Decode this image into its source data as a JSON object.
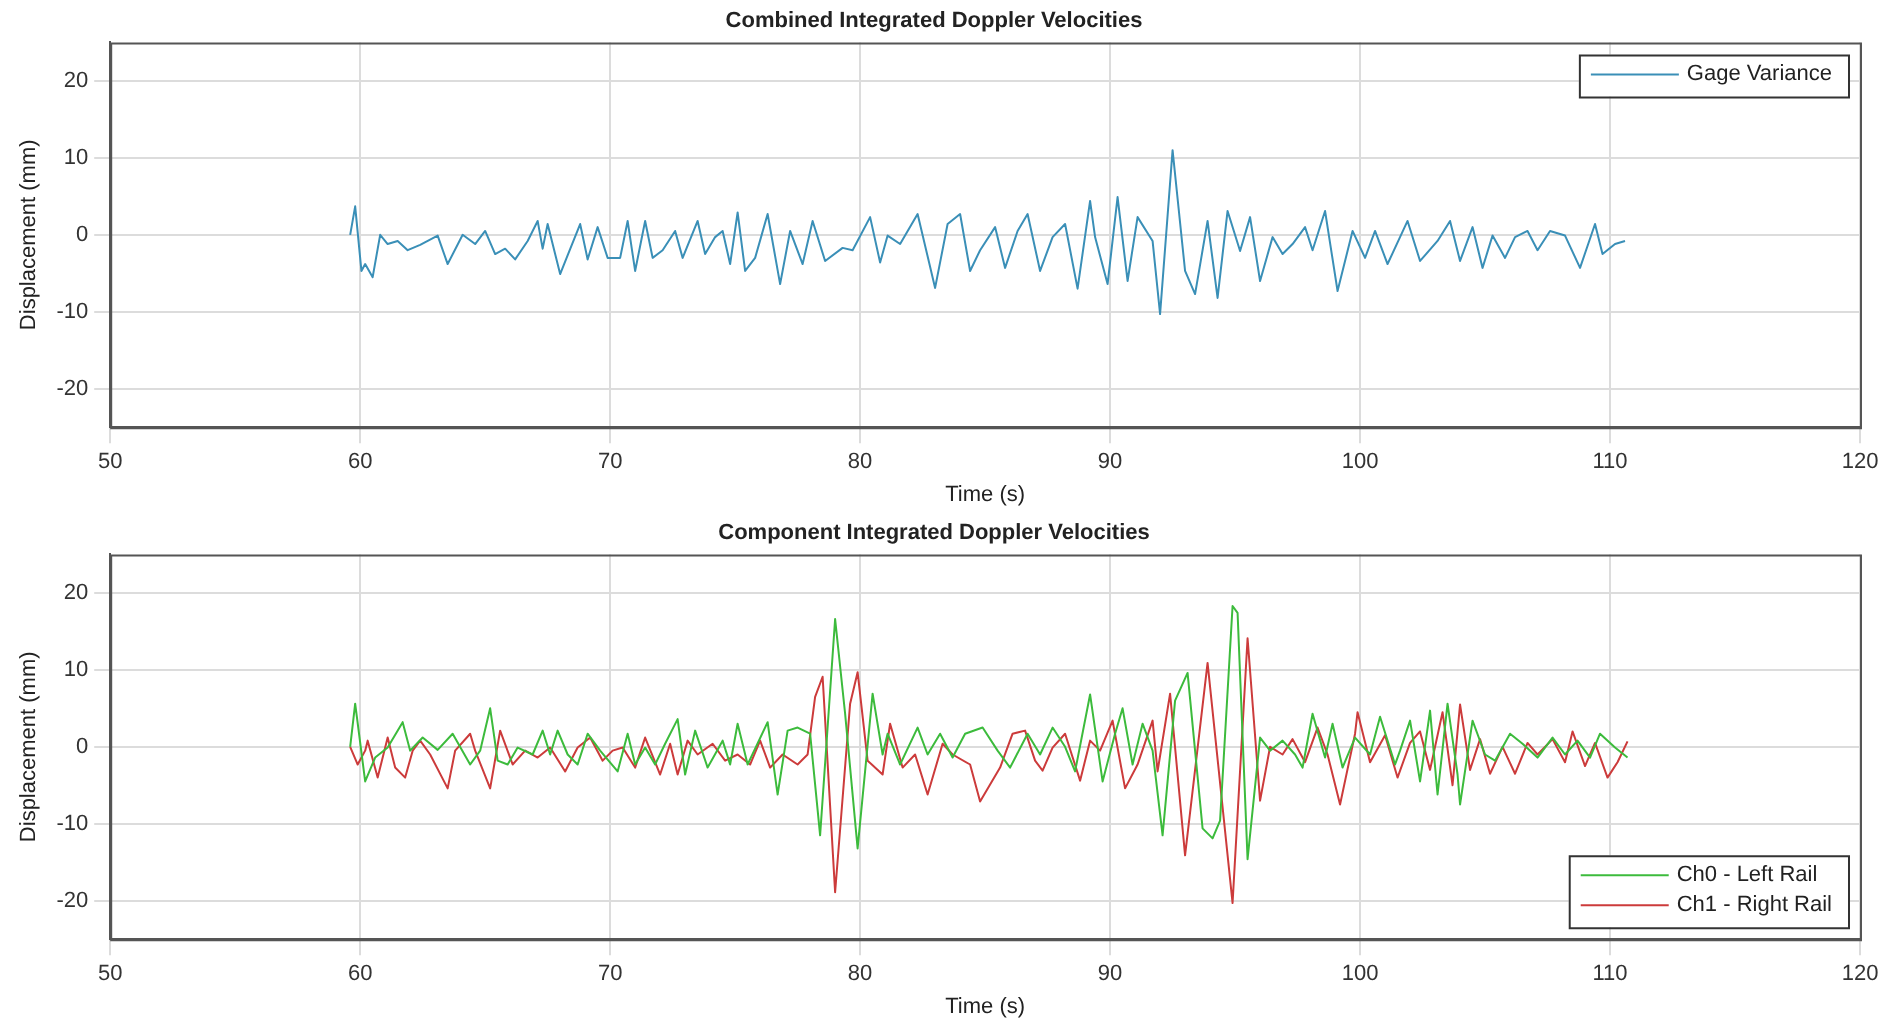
{
  "chart_data": [
    {
      "type": "line",
      "title": "Combined Integrated Doppler Velocities",
      "xlabel": "Time (s)",
      "ylabel": "Displacement (mm)",
      "xlim": [
        50,
        120
      ],
      "xticks": [
        50,
        60,
        70,
        80,
        90,
        100,
        110,
        120
      ],
      "ylim": [
        -25,
        25
      ],
      "yticks": [
        -20,
        -10,
        0,
        10,
        20
      ],
      "grid": true,
      "legend": "top right",
      "series": [
        {
          "name": "Gage Variance",
          "color": "#3a8fb7",
          "x": [
            59.6,
            59.8,
            60.05,
            60.2,
            60.5,
            60.8,
            61.1,
            61.5,
            61.9,
            62.4,
            63.1,
            63.5,
            64.1,
            64.6,
            65.0,
            65.4,
            65.8,
            66.2,
            66.7,
            67.1,
            67.3,
            67.5,
            68.0,
            68.8,
            69.1,
            69.5,
            69.9,
            70.4,
            70.7,
            71.0,
            71.4,
            71.7,
            72.1,
            72.6,
            72.9,
            73.5,
            73.8,
            74.2,
            74.5,
            74.8,
            75.1,
            75.4,
            75.8,
            76.3,
            76.8,
            77.2,
            77.7,
            78.1,
            78.6,
            79.3,
            79.7,
            80.4,
            80.8,
            81.1,
            81.6,
            82.3,
            83.0,
            83.5,
            84.0,
            84.4,
            84.8,
            85.4,
            85.8,
            86.3,
            86.7,
            87.2,
            87.7,
            88.2,
            88.7,
            89.2,
            89.4,
            89.9,
            90.3,
            90.7,
            91.1,
            91.7,
            92.0,
            92.5,
            93.0,
            93.4,
            93.9,
            94.3,
            94.7,
            95.2,
            95.6,
            96.0,
            96.5,
            96.9,
            97.3,
            97.8,
            98.1,
            98.6,
            99.1,
            99.7,
            100.2,
            100.6,
            101.1,
            101.9,
            102.4,
            103.1,
            103.6,
            104.0,
            104.5,
            104.9,
            105.3,
            105.8,
            106.2,
            106.7,
            107.1,
            107.6,
            108.2,
            108.8,
            109.4,
            109.7,
            110.2,
            110.6
          ],
          "values": [
            0,
            3.7,
            -4.7,
            -3.8,
            -5.5,
            0,
            -1.2,
            -0.8,
            -2,
            -1.3,
            -0.1,
            -3.8,
            0,
            -1.2,
            0.5,
            -2.5,
            -1.8,
            -3.2,
            -0.8,
            1.8,
            -1.8,
            1.4,
            -5.1,
            1.4,
            -3.2,
            1,
            -3,
            -3,
            1.8,
            -4.7,
            1.8,
            -3,
            -2,
            0.5,
            -3,
            1.8,
            -2.5,
            -0.3,
            0.5,
            -3.8,
            2.9,
            -4.7,
            -3,
            2.7,
            -6.4,
            0.5,
            -3.8,
            1.8,
            -3.4,
            -1.7,
            -2,
            2.3,
            -3.6,
            -0.1,
            -1.2,
            2.7,
            -6.9,
            1.4,
            2.7,
            -4.7,
            -2,
            1,
            -4.3,
            0.5,
            2.7,
            -4.7,
            -0.3,
            1.4,
            -7,
            4.4,
            -0.3,
            -6.4,
            4.9,
            -6,
            2.3,
            -0.8,
            -10.3,
            11,
            -4.7,
            -7.7,
            1.8,
            -8.2,
            3.1,
            -2.1,
            2.3,
            -6,
            -0.3,
            -2.5,
            -1.2,
            1,
            -2,
            3.1,
            -7.3,
            0.5,
            -3,
            0.5,
            -3.8,
            1.8,
            -3.4,
            -0.8,
            1.8,
            -3.4,
            1,
            -4.3,
            -0.1,
            -3,
            -0.3,
            0.5,
            -2,
            0.5,
            -0.1,
            -4.3,
            1.4,
            -2.5,
            -1.2,
            -0.8
          ]
        }
      ]
    },
    {
      "type": "line",
      "title": "Component Integrated Doppler Velocities",
      "xlabel": "Time (s)",
      "ylabel": "Displacement (mm)",
      "xlim": [
        50,
        120
      ],
      "xticks": [
        50,
        60,
        70,
        80,
        90,
        100,
        110,
        120
      ],
      "ylim": [
        -25,
        25
      ],
      "yticks": [
        -20,
        -10,
        0,
        10,
        20
      ],
      "grid": true,
      "legend": "bottom right",
      "series": [
        {
          "name": "Ch0 - Left Rail",
          "color": "#3cbb3c",
          "x": [
            59.6,
            59.8,
            60.2,
            60.6,
            61.1,
            61.7,
            62.0,
            62.5,
            63.1,
            63.7,
            64.4,
            64.8,
            65.2,
            65.5,
            65.9,
            66.3,
            66.9,
            67.3,
            67.6,
            67.9,
            68.3,
            68.7,
            69.1,
            69.6,
            70.3,
            70.7,
            71.0,
            71.4,
            71.8,
            72.2,
            72.7,
            73.0,
            73.4,
            73.9,
            74.5,
            74.8,
            75.1,
            75.5,
            76.3,
            76.7,
            77.1,
            77.5,
            78.0,
            78.4,
            79.0,
            79.4,
            79.9,
            80.5,
            80.9,
            81.1,
            81.6,
            82.3,
            82.7,
            83.2,
            83.7,
            84.2,
            84.9,
            85.5,
            86.0,
            86.7,
            87.2,
            87.7,
            88.2,
            88.6,
            89.2,
            89.7,
            90.2,
            90.5,
            90.9,
            91.3,
            91.7,
            92.1,
            92.6,
            93.1,
            93.7,
            94.1,
            94.4,
            94.9,
            95.1,
            95.5,
            96.0,
            96.4,
            96.9,
            97.4,
            97.7,
            98.1,
            98.6,
            98.9,
            99.3,
            99.8,
            100.4,
            100.8,
            101.4,
            101.6,
            102.0,
            102.4,
            102.8,
            103.1,
            103.5,
            103.9,
            104.0,
            104.5,
            105.0,
            105.4,
            106.0,
            106.5,
            107.1,
            107.7,
            108.2,
            108.7,
            109.2,
            109.6,
            110.2,
            110.7
          ],
          "values": [
            0,
            5.6,
            -4.5,
            -1.4,
            -0.1,
            3.2,
            -0.5,
            1.2,
            -0.4,
            1.7,
            -2.3,
            -0.5,
            5,
            -1.8,
            -2.3,
            -0.1,
            -1,
            2.1,
            -1,
            2.1,
            -1,
            -2.3,
            1.7,
            -0.5,
            -3.2,
            1.7,
            -2.3,
            -0.1,
            -2.3,
            0.4,
            3.6,
            -3.6,
            2.1,
            -2.7,
            0.8,
            -2.3,
            3,
            -2.3,
            3.2,
            -6.2,
            2.1,
            2.5,
            1.7,
            -11.5,
            16.6,
            4.3,
            -13.2,
            6.9,
            -1,
            1.7,
            -2.3,
            2.5,
            -1,
            1.7,
            -1.4,
            1.7,
            2.5,
            -0.5,
            -2.7,
            1.7,
            -1,
            2.5,
            0,
            -3.2,
            6.8,
            -4.5,
            1.7,
            5,
            -2.3,
            3,
            -0.5,
            -11.5,
            6,
            9.6,
            -10.6,
            -11.9,
            -9.6,
            18.3,
            17.4,
            -14.6,
            1.2,
            -0.5,
            0.8,
            -1,
            -2.7,
            4.3,
            -1.4,
            3,
            -2.7,
            1.2,
            -1,
            3.9,
            -2.3,
            -0.5,
            3.4,
            -4.5,
            4.7,
            -6.2,
            5.6,
            -3.6,
            -7.5,
            3.4,
            -1,
            -1.8,
            1.7,
            0.4,
            -1.4,
            1.2,
            -1,
            0.8,
            -1.4,
            1.7,
            -0.1,
            -1.4
          ]
        },
        {
          "name": "Ch1 - Right Rail",
          "color": "#cc3b3b",
          "x": [
            59.6,
            59.9,
            60.2,
            60.3,
            60.7,
            61.1,
            61.4,
            61.8,
            62.1,
            62.4,
            62.8,
            63.5,
            63.8,
            64.4,
            64.6,
            65.2,
            65.6,
            66.1,
            66.6,
            67.1,
            67.6,
            68.2,
            68.7,
            69.2,
            69.7,
            70.1,
            70.5,
            71.0,
            71.4,
            72.0,
            72.4,
            72.7,
            73.1,
            73.5,
            74.1,
            74.6,
            75.1,
            75.6,
            76.0,
            76.4,
            76.9,
            77.5,
            77.9,
            78.2,
            78.5,
            79.0,
            79.6,
            79.9,
            80.3,
            80.9,
            81.2,
            81.7,
            82.2,
            82.7,
            83.3,
            83.7,
            84.4,
            84.8,
            85.6,
            86.1,
            86.6,
            87.0,
            87.3,
            87.7,
            88.2,
            88.8,
            89.2,
            89.6,
            90.1,
            90.6,
            91.1,
            91.7,
            91.9,
            92.4,
            93.0,
            93.9,
            94.9,
            95.5,
            96.0,
            96.4,
            96.9,
            97.3,
            97.8,
            98.3,
            98.7,
            99.2,
            99.8,
            99.9,
            100.4,
            101.0,
            101.5,
            102.0,
            102.4,
            102.8,
            103.3,
            103.7,
            104.0,
            104.4,
            104.8,
            105.2,
            105.7,
            106.2,
            106.7,
            107.1,
            107.7,
            108.2,
            108.5,
            109.0,
            109.4,
            109.9,
            110.3,
            110.7
          ],
          "values": [
            0,
            -2.3,
            -0.5,
            0.8,
            -4,
            1.2,
            -2.7,
            -4,
            -0.5,
            0.8,
            -1,
            -5.4,
            -0.5,
            1.7,
            -0.5,
            -5.4,
            2.1,
            -2.3,
            -0.5,
            -1.4,
            -0.1,
            -3.2,
            -0.1,
            1.2,
            -1.8,
            -0.5,
            -0.1,
            -2.7,
            1.2,
            -3.6,
            0.4,
            -3.6,
            0.8,
            -1,
            0.4,
            -1.8,
            -1,
            -2.3,
            0.8,
            -2.7,
            -1,
            -2.3,
            -1,
            6.5,
            9.1,
            -18.9,
            5.6,
            9.7,
            -1.8,
            -3.6,
            3,
            -2.7,
            -1,
            -6.2,
            0.4,
            -1,
            -2.3,
            -7.1,
            -2.7,
            1.7,
            2.1,
            -1.8,
            -3.1,
            -0.1,
            1.7,
            -4.4,
            0.8,
            -0.5,
            3.4,
            -5.4,
            -2.3,
            3.4,
            -3.2,
            6.9,
            -14.1,
            10.9,
            -20.3,
            14.1,
            -7,
            0,
            -1,
            1,
            -2,
            2.5,
            -1,
            -7.5,
            1.7,
            4.5,
            -2,
            1.5,
            -4,
            0.5,
            2,
            -3,
            4.5,
            -5,
            5.5,
            -3,
            1,
            -3.5,
            0,
            -3.5,
            0.5,
            -1,
            1,
            -2,
            2,
            -2.5,
            0.5,
            -4,
            -2,
            0.7
          ]
        }
      ]
    }
  ]
}
